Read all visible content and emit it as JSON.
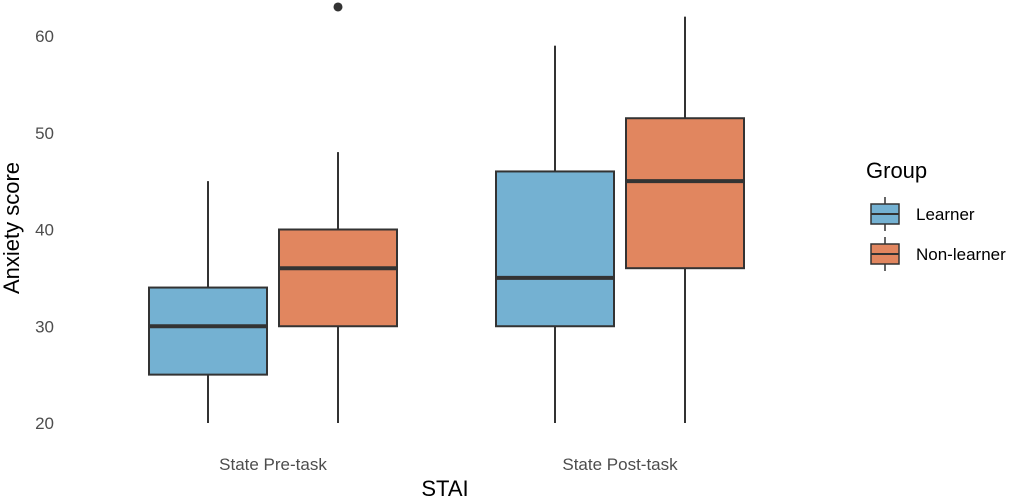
{
  "chart_data": {
    "type": "boxplot",
    "title": "",
    "xlabel": "STAI",
    "ylabel": "Anxiety score",
    "ylim": [
      19.5,
      64
    ],
    "yticks": [
      20,
      30,
      40,
      50,
      60
    ],
    "grid": false,
    "legend": {
      "title": "Group",
      "placement": "right",
      "items": [
        "Learner",
        "Non-learner"
      ]
    },
    "categories": [
      "State Pre-task",
      "State Post-task"
    ],
    "series": [
      {
        "name": "Learner",
        "color": "#74b1d2",
        "boxes": [
          {
            "category": "State Pre-task",
            "min": 20,
            "q1": 25,
            "median": 30,
            "q3": 34,
            "max": 45,
            "outliers": []
          },
          {
            "category": "State Post-task",
            "min": 20,
            "q1": 30,
            "median": 35,
            "q3": 46,
            "max": 59,
            "outliers": []
          }
        ]
      },
      {
        "name": "Non-learner",
        "color": "#e1865f",
        "boxes": [
          {
            "category": "State Pre-task",
            "min": 20,
            "q1": 30,
            "median": 36,
            "q3": 40,
            "max": 48,
            "outliers": [
              63
            ]
          },
          {
            "category": "State Post-task",
            "min": 20,
            "q1": 36,
            "median": 45,
            "q3": 51.5,
            "max": 62,
            "outliers": []
          }
        ]
      }
    ]
  }
}
